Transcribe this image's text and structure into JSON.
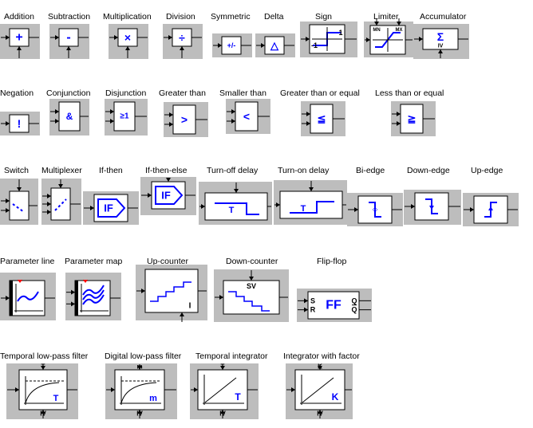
{
  "colors": {
    "gray": "#bdbdbd",
    "box": "#ffffff",
    "stroke": "#000000",
    "blue": "#0000ff",
    "red": "#ff0000"
  },
  "blocks": [
    {
      "id": "addition",
      "label": "Addition",
      "symbol": "+"
    },
    {
      "id": "subtraction",
      "label": "Subtraction",
      "symbol": "-"
    },
    {
      "id": "multiplication",
      "label": "Multiplication",
      "symbol": "×"
    },
    {
      "id": "division",
      "label": "Division",
      "symbol": "÷"
    },
    {
      "id": "symmetric",
      "label": "Symmetric",
      "symbol": "+/-"
    },
    {
      "id": "delta",
      "label": "Delta",
      "symbol": "△"
    },
    {
      "id": "sign",
      "label": "Sign",
      "symbol": "",
      "tick_top": "1",
      "tick_bottom": "-1"
    },
    {
      "id": "limiter",
      "label": "Limiter",
      "symbol": "",
      "mn": "MN",
      "mx": "MX"
    },
    {
      "id": "accumulator",
      "label": "Accumulator",
      "symbol": "Σ",
      "sub": "IV"
    },
    {
      "id": "negation",
      "label": "Negation",
      "symbol": "!"
    },
    {
      "id": "conjunction",
      "label": "Conjunction",
      "symbol": "&"
    },
    {
      "id": "disjunction",
      "label": "Disjunction",
      "symbol": "≥1"
    },
    {
      "id": "greater-than",
      "label": "Greater than",
      "symbol": ">"
    },
    {
      "id": "smaller-than",
      "label": "Smaller than",
      "symbol": "<"
    },
    {
      "id": "greater-equal",
      "label": "Greater than or equal",
      "symbol": "≦"
    },
    {
      "id": "less-equal",
      "label": "Less than or equal",
      "symbol": "≧"
    },
    {
      "id": "switch",
      "label": "Switch",
      "symbol": ""
    },
    {
      "id": "multiplexer",
      "label": "Multiplexer",
      "symbol": ""
    },
    {
      "id": "if-then",
      "label": "If-then",
      "symbol": "IF"
    },
    {
      "id": "if-then-else",
      "label": "If-then-else",
      "symbol": "IF"
    },
    {
      "id": "turn-off-delay",
      "label": "Turn-off delay",
      "symbol": "T"
    },
    {
      "id": "turn-on-delay",
      "label": "Turn-on delay",
      "symbol": "T"
    },
    {
      "id": "bi-edge",
      "label": "Bi-edge",
      "symbol": ""
    },
    {
      "id": "down-edge",
      "label": "Down-edge",
      "symbol": ""
    },
    {
      "id": "up-edge",
      "label": "Up-edge",
      "symbol": ""
    },
    {
      "id": "parameter-line",
      "label": "Parameter line",
      "symbol": ""
    },
    {
      "id": "parameter-map",
      "label": "Parameter map",
      "symbol": ""
    },
    {
      "id": "up-counter",
      "label": "Up-counter",
      "symbol": "I"
    },
    {
      "id": "down-counter",
      "label": "Down-counter",
      "symbol": "SV"
    },
    {
      "id": "flip-flop",
      "label": "Flip-flop",
      "symbol": "FF",
      "s": "S",
      "r": "R",
      "q": "Q",
      "qbar": "Q"
    },
    {
      "id": "temporal-lowpass",
      "label": "Temporal low-pass filter",
      "symbol": "T",
      "top": "T",
      "sub": "IV"
    },
    {
      "id": "digital-lowpass",
      "label": "Digital low-pass filter",
      "symbol": "m",
      "top": "m",
      "sub": "IV"
    },
    {
      "id": "temporal-integrator",
      "label": "Temporal integrator",
      "symbol": "T",
      "top": "T",
      "sub": "IV"
    },
    {
      "id": "integrator-factor",
      "label": "Integrator with factor",
      "symbol": "K",
      "top": "K",
      "sub": "IV"
    }
  ]
}
